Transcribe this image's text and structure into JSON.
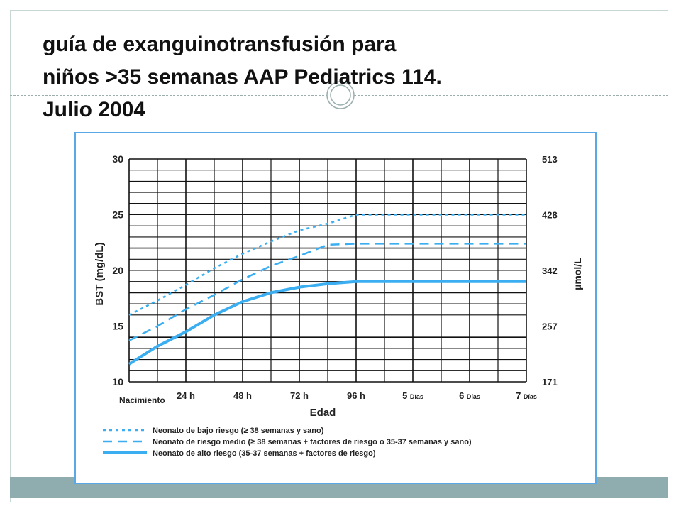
{
  "slide": {
    "title_lines": [
      "guía de exanguinotransfusión para",
      "niños >35 semanas AAP Pediatrics 114.",
      "Julio 2004"
    ]
  },
  "colors": {
    "series": "#3aaef0",
    "grid": "#111111",
    "frame_border": "#5aa9e6",
    "bottom_band": "#8fadae"
  },
  "chart_data": {
    "type": "line",
    "xlabel": "Edad",
    "ylabel": "BST (mg/dL)",
    "ylabel_right": "µmol/L",
    "categories": [
      "Nacimiento",
      "24 h",
      "48 h",
      "72 h",
      "96 h",
      "5 Días",
      "6 Días",
      "7 Días"
    ],
    "x_hours": [
      0,
      24,
      48,
      72,
      96,
      120,
      144,
      168
    ],
    "ylim": [
      10,
      30
    ],
    "yticks": [
      10,
      15,
      20,
      25,
      30
    ],
    "right_ticks": [
      "171",
      "257",
      "342",
      "428",
      "513"
    ],
    "grid": true,
    "legend_position": "bottom",
    "series": [
      {
        "name": "Neonato de bajo riesgo (≥ 38 semanas y sano)",
        "style": "dotted",
        "points": [
          [
            0,
            16
          ],
          [
            12,
            17.3
          ],
          [
            24,
            18.7
          ],
          [
            36,
            20.2
          ],
          [
            48,
            21.5
          ],
          [
            60,
            22.6
          ],
          [
            72,
            23.6
          ],
          [
            84,
            24.2
          ],
          [
            96,
            25
          ],
          [
            120,
            25
          ],
          [
            144,
            25
          ],
          [
            168,
            25
          ]
        ]
      },
      {
        "name": "Neonato de riesgo medio (≥ 38 semanas + factores de riesgo o 35-37 semanas y sano)",
        "style": "dashed",
        "points": [
          [
            0,
            13.7
          ],
          [
            12,
            15
          ],
          [
            24,
            16.5
          ],
          [
            36,
            17.8
          ],
          [
            48,
            19.2
          ],
          [
            60,
            20.4
          ],
          [
            72,
            21.3
          ],
          [
            84,
            22.3
          ],
          [
            96,
            22.4
          ],
          [
            120,
            22.4
          ],
          [
            144,
            22.4
          ],
          [
            168,
            22.4
          ]
        ]
      },
      {
        "name": "Neonato de alto riesgo (35-37 semanas + factores de riesgo)",
        "style": "solid",
        "points": [
          [
            0,
            11.6
          ],
          [
            12,
            13.2
          ],
          [
            24,
            14.5
          ],
          [
            36,
            16
          ],
          [
            48,
            17.2
          ],
          [
            60,
            18
          ],
          [
            72,
            18.5
          ],
          [
            84,
            18.8
          ],
          [
            96,
            19
          ],
          [
            120,
            19
          ],
          [
            144,
            19
          ],
          [
            168,
            19
          ]
        ]
      }
    ]
  }
}
